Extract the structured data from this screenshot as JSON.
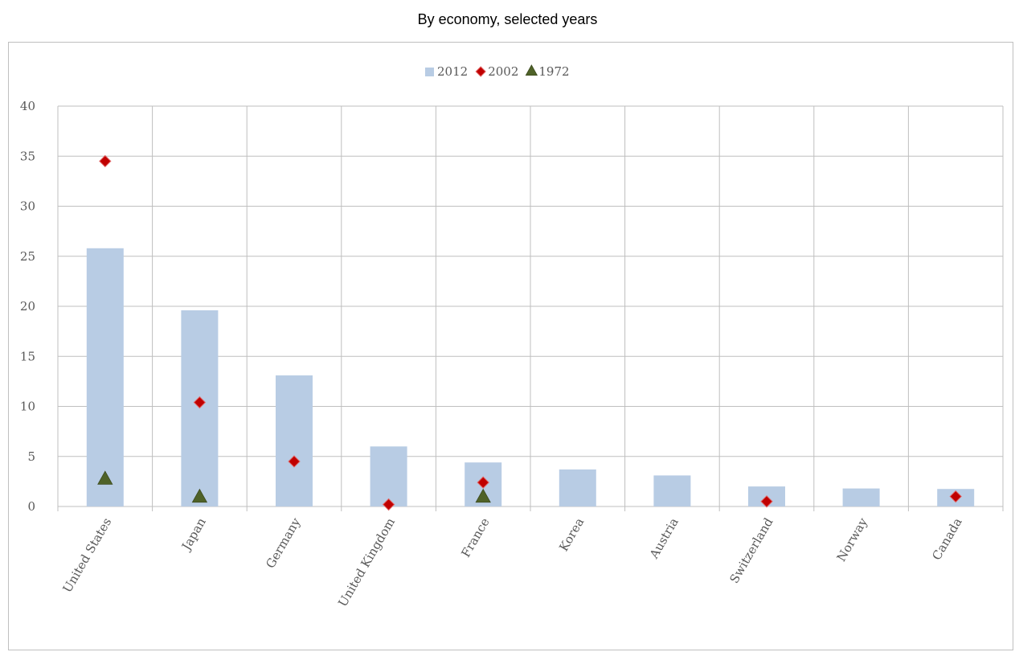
{
  "chart_data": {
    "type": "bar",
    "subtitle": "By economy, selected years",
    "categories": [
      "United States",
      "Japan",
      "Germany",
      "United Kingdom",
      "France",
      "Korea",
      "Austria",
      "Switzerland",
      "Norway",
      "Canada"
    ],
    "series": [
      {
        "name": "2012",
        "kind": "bar",
        "color": "#b8cce4",
        "values": [
          25.8,
          19.6,
          13.1,
          6.0,
          4.4,
          3.7,
          3.1,
          2.0,
          1.8,
          1.75
        ]
      },
      {
        "name": "2002",
        "kind": "marker-diamond",
        "color": "#c00000",
        "values": [
          34.5,
          10.4,
          4.5,
          0.2,
          2.4,
          null,
          null,
          0.5,
          null,
          1.0
        ]
      },
      {
        "name": "1972",
        "kind": "marker-triangle",
        "color": "#4f6228",
        "values": [
          2.8,
          1.0,
          null,
          null,
          1.0,
          null,
          null,
          null,
          null,
          null
        ]
      }
    ],
    "ylim": [
      0,
      40
    ],
    "yticks": [
      0,
      5,
      10,
      15,
      20,
      25,
      30,
      35,
      40
    ],
    "grid": true,
    "legend_position": "top-center"
  }
}
